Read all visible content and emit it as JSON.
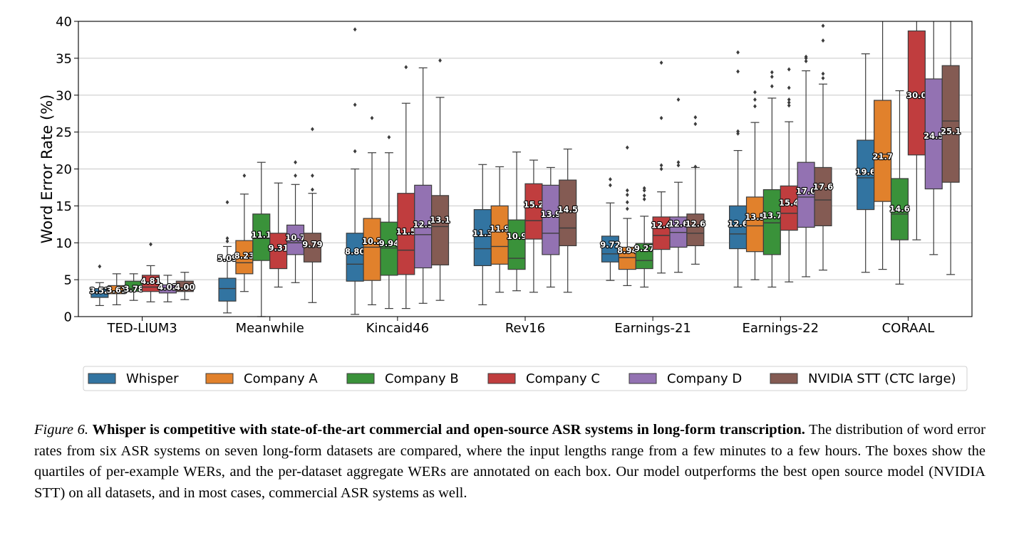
{
  "chart_data": {
    "type": "boxplot",
    "title": "",
    "xlabel": "",
    "ylabel": "Word Error Rate (%)",
    "ylim": [
      0,
      40
    ],
    "yticks": [
      0,
      5,
      10,
      15,
      20,
      25,
      30,
      35,
      40
    ],
    "grid": "horizontal",
    "legend_position": "bottom-center",
    "categories": [
      "TED-LIUM3",
      "Meanwhile",
      "Kincaid46",
      "Rev16",
      "Earnings-21",
      "Earnings-22",
      "CORAAL"
    ],
    "series": [
      {
        "name": "Whisper",
        "color": "#3274a1",
        "boxes": [
          {
            "q1": 2.6,
            "median": 3.2,
            "q3": 3.8,
            "whisker_low": 1.5,
            "whisker_high": 4.6,
            "outliers": [
              6.8
            ],
            "label": "3.52",
            "label_y": 3.5
          },
          {
            "q1": 2.1,
            "median": 3.8,
            "q3": 5.2,
            "whisker_low": 0.5,
            "whisker_high": 9.5,
            "outliers": [
              10.2,
              10.6,
              15.5
            ],
            "label": "5.09",
            "label_y": 7.9
          },
          {
            "q1": 4.8,
            "median": 7.1,
            "q3": 11.3,
            "whisker_low": 0.3,
            "whisker_high": 20.0,
            "outliers": [
              22.4,
              28.7,
              38.9
            ],
            "label": "8.80",
            "label_y": 8.8
          },
          {
            "q1": 6.9,
            "median": 9.2,
            "q3": 14.5,
            "whisker_low": 1.6,
            "whisker_high": 20.6,
            "outliers": [],
            "label": "11.3",
            "label_y": 11.3
          },
          {
            "q1": 7.4,
            "median": 8.5,
            "q3": 10.9,
            "whisker_low": 4.9,
            "whisker_high": 15.4,
            "outliers": [
              17.8,
              18.6
            ],
            "label": "9.72",
            "label_y": 9.72
          },
          {
            "q1": 9.2,
            "median": 11.2,
            "q3": 15.0,
            "whisker_low": 4.0,
            "whisker_high": 22.5,
            "outliers": [
              24.8,
              25.1,
              33.2,
              35.8
            ],
            "label": "12.6",
            "label_y": 12.6
          },
          {
            "q1": 14.5,
            "median": 18.8,
            "q3": 23.9,
            "whisker_low": 6.0,
            "whisker_high": 35.6,
            "outliers": [],
            "label": "19.6",
            "label_y": 19.6
          }
        ]
      },
      {
        "name": "Company A",
        "color": "#e1812c",
        "boxes": [
          {
            "q1": 3.1,
            "median": 3.5,
            "q3": 4.2,
            "whisker_low": 1.6,
            "whisker_high": 5.8,
            "outliers": [],
            "label": "3.61",
            "label_y": 3.61
          },
          {
            "q1": 5.8,
            "median": 7.3,
            "q3": 10.3,
            "whisker_low": 3.4,
            "whisker_high": 16.6,
            "outliers": [
              19.1
            ],
            "label": "8.23",
            "label_y": 8.23
          },
          {
            "q1": 4.9,
            "median": 9.4,
            "q3": 13.3,
            "whisker_low": 1.6,
            "whisker_high": 22.2,
            "outliers": [
              26.9
            ],
            "label": "10.2",
            "label_y": 10.2
          },
          {
            "q1": 7.1,
            "median": 9.5,
            "q3": 15.0,
            "whisker_low": 3.3,
            "whisker_high": 20.3,
            "outliers": [],
            "label": "11.9",
            "label_y": 11.9
          },
          {
            "q1": 6.4,
            "median": 8.0,
            "q3": 9.4,
            "whisker_low": 4.2,
            "whisker_high": 13.3,
            "outliers": [
              14.6,
              15.5,
              16.5,
              17.1,
              22.9
            ],
            "label": "8.94",
            "label_y": 8.94
          },
          {
            "q1": 8.8,
            "median": 12.3,
            "q3": 16.2,
            "whisker_low": 5.0,
            "whisker_high": 26.3,
            "outliers": [
              28.5,
              29.4,
              30.4
            ],
            "label": "13.5",
            "label_y": 13.5
          },
          {
            "q1": 15.6,
            "median": 22.0,
            "q3": 29.3,
            "whisker_low": 6.4,
            "whisker_high": 40.0,
            "outliers": [],
            "label": "21.7",
            "label_y": 21.7
          }
        ]
      },
      {
        "name": "Company B",
        "color": "#3a923a",
        "boxes": [
          {
            "q1": 3.4,
            "median": 3.8,
            "q3": 4.8,
            "whisker_low": 2.2,
            "whisker_high": 5.8,
            "outliers": [],
            "label": "3.78",
            "label_y": 3.78
          },
          {
            "q1": 7.6,
            "median": 10.6,
            "q3": 13.9,
            "whisker_low": 0.0,
            "whisker_high": 20.9,
            "outliers": [],
            "label": "11.1",
            "label_y": 11.1
          },
          {
            "q1": 5.6,
            "median": 9.3,
            "q3": 12.8,
            "whisker_low": 1.1,
            "whisker_high": 22.2,
            "outliers": [
              24.3
            ],
            "label": "9.94",
            "label_y": 9.94
          },
          {
            "q1": 6.4,
            "median": 7.9,
            "q3": 13.1,
            "whisker_low": 3.5,
            "whisker_high": 22.3,
            "outliers": [],
            "label": "10.9",
            "label_y": 10.9
          },
          {
            "q1": 6.5,
            "median": 7.6,
            "q3": 9.9,
            "whisker_low": 4.0,
            "whisker_high": 13.6,
            "outliers": [
              15.9,
              16.4,
              17.1,
              17.4
            ],
            "label": "9.27",
            "label_y": 9.27
          },
          {
            "q1": 8.4,
            "median": 12.7,
            "q3": 17.2,
            "whisker_low": 4.0,
            "whisker_high": 29.6,
            "outliers": [
              31.2,
              32.5,
              33.1
            ],
            "label": "13.7",
            "label_y": 13.7
          },
          {
            "q1": 10.4,
            "median": 13.9,
            "q3": 18.7,
            "whisker_low": 4.4,
            "whisker_high": 30.6,
            "outliers": [],
            "label": "14.6",
            "label_y": 14.6
          }
        ]
      },
      {
        "name": "Company C",
        "color": "#c03d3e",
        "boxes": [
          {
            "q1": 3.4,
            "median": 4.0,
            "q3": 5.6,
            "whisker_low": 2.0,
            "whisker_high": 6.9,
            "outliers": [
              9.8
            ],
            "label": "4.81",
            "label_y": 4.81
          },
          {
            "q1": 6.5,
            "median": 9.2,
            "q3": 11.3,
            "whisker_low": 4.0,
            "whisker_high": 18.1,
            "outliers": [],
            "label": "9.31",
            "label_y": 9.31
          },
          {
            "q1": 5.7,
            "median": 9.0,
            "q3": 16.7,
            "whisker_low": 1.1,
            "whisker_high": 28.9,
            "outliers": [
              33.8
            ],
            "label": "11.5",
            "label_y": 11.5
          },
          {
            "q1": 10.5,
            "median": 13.0,
            "q3": 18.0,
            "whisker_low": 3.3,
            "whisker_high": 21.2,
            "outliers": [],
            "label": "15.2",
            "label_y": 15.2
          },
          {
            "q1": 9.1,
            "median": 11.0,
            "q3": 13.5,
            "whisker_low": 5.9,
            "whisker_high": 16.9,
            "outliers": [
              20.0,
              20.5,
              26.9,
              34.4
            ],
            "label": "12.4",
            "label_y": 12.4
          },
          {
            "q1": 11.7,
            "median": 14.0,
            "q3": 17.7,
            "whisker_low": 4.7,
            "whisker_high": 26.4,
            "outliers": [
              28.6,
              29.0,
              29.4,
              31.0,
              33.5
            ],
            "label": "15.4",
            "label_y": 15.4
          },
          {
            "q1": 21.9,
            "median": 30.0,
            "q3": 38.7,
            "whisker_low": 10.4,
            "whisker_high": 40.0,
            "outliers": [],
            "label": "30.0",
            "label_y": 30.0
          }
        ]
      },
      {
        "name": "Company D",
        "color": "#9372b2",
        "boxes": [
          {
            "q1": 3.2,
            "median": 3.8,
            "q3": 4.3,
            "whisker_low": 2.0,
            "whisker_high": 5.6,
            "outliers": [],
            "label": "4.02",
            "label_y": 4.02
          },
          {
            "q1": 8.4,
            "median": 10.0,
            "q3": 12.4,
            "whisker_low": 4.6,
            "whisker_high": 17.9,
            "outliers": [
              19.1,
              20.9
            ],
            "label": "10.7",
            "label_y": 10.7
          },
          {
            "q1": 6.6,
            "median": 11.1,
            "q3": 17.8,
            "whisker_low": 1.8,
            "whisker_high": 33.7,
            "outliers": [],
            "label": "12.5",
            "label_y": 12.5
          },
          {
            "q1": 8.4,
            "median": 11.3,
            "q3": 17.8,
            "whisker_low": 4.0,
            "whisker_high": 20.2,
            "outliers": [],
            "label": "13.9",
            "label_y": 13.9
          },
          {
            "q1": 9.4,
            "median": 11.4,
            "q3": 13.5,
            "whisker_low": 6.0,
            "whisker_high": 18.2,
            "outliers": [
              20.5,
              20.9,
              29.4
            ],
            "label": "12.6",
            "label_y": 12.6
          },
          {
            "q1": 12.1,
            "median": 16.2,
            "q3": 20.9,
            "whisker_low": 5.4,
            "whisker_high": 33.3,
            "outliers": [
              34.6,
              35.0,
              35.2
            ],
            "label": "17.0",
            "label_y": 17.0
          },
          {
            "q1": 17.3,
            "median": 24.1,
            "q3": 32.2,
            "whisker_low": 8.4,
            "whisker_high": 40.0,
            "outliers": [],
            "label": "24.5",
            "label_y": 24.5
          }
        ]
      },
      {
        "name": "NVIDIA STT (CTC large)",
        "color": "#845b53",
        "boxes": [
          {
            "q1": 3.4,
            "median": 3.9,
            "q3": 4.8,
            "whisker_low": 2.3,
            "whisker_high": 6.0,
            "outliers": [],
            "label": "4.00",
            "label_y": 4.0
          },
          {
            "q1": 7.4,
            "median": 9.4,
            "q3": 11.3,
            "whisker_low": 1.9,
            "whisker_high": 16.7,
            "outliers": [
              17.2,
              19.1,
              25.4
            ],
            "label": "9.79",
            "label_y": 9.79
          },
          {
            "q1": 7.0,
            "median": 12.2,
            "q3": 16.4,
            "whisker_low": 2.2,
            "whisker_high": 29.7,
            "outliers": [
              34.7
            ],
            "label": "13.1",
            "label_y": 13.1
          },
          {
            "q1": 9.6,
            "median": 12.0,
            "q3": 18.5,
            "whisker_low": 3.3,
            "whisker_high": 22.7,
            "outliers": [],
            "label": "14.5",
            "label_y": 14.5
          },
          {
            "q1": 9.6,
            "median": 11.3,
            "q3": 13.9,
            "whisker_low": 7.1,
            "whisker_high": 20.2,
            "outliers": [
              20.3,
              26.1,
              27.0
            ],
            "label": "12.6",
            "label_y": 12.6
          },
          {
            "q1": 12.3,
            "median": 15.8,
            "q3": 20.2,
            "whisker_low": 6.3,
            "whisker_high": 31.5,
            "outliers": [
              32.3,
              32.9,
              37.4,
              39.4
            ],
            "label": "17.6",
            "label_y": 17.6
          },
          {
            "q1": 18.2,
            "median": 26.5,
            "q3": 34.0,
            "whisker_low": 5.7,
            "whisker_high": 40.0,
            "outliers": [],
            "label": "25.1",
            "label_y": 25.1
          }
        ]
      }
    ]
  },
  "caption": {
    "label": "Figure 6.",
    "bold": "Whisper is competitive with state-of-the-art commercial and open-source ASR systems in long-form transcription.",
    "body": "The distribution of word error rates from six ASR systems on seven long-form datasets are compared, where the input lengths range from a few minutes to a few hours. The boxes show the quartiles of per-example WERs, and the per-dataset aggregate WERs are annotated on each box. Our model outperforms the best open source model (NVIDIA STT) on all datasets, and in most cases, commercial ASR systems as well."
  }
}
